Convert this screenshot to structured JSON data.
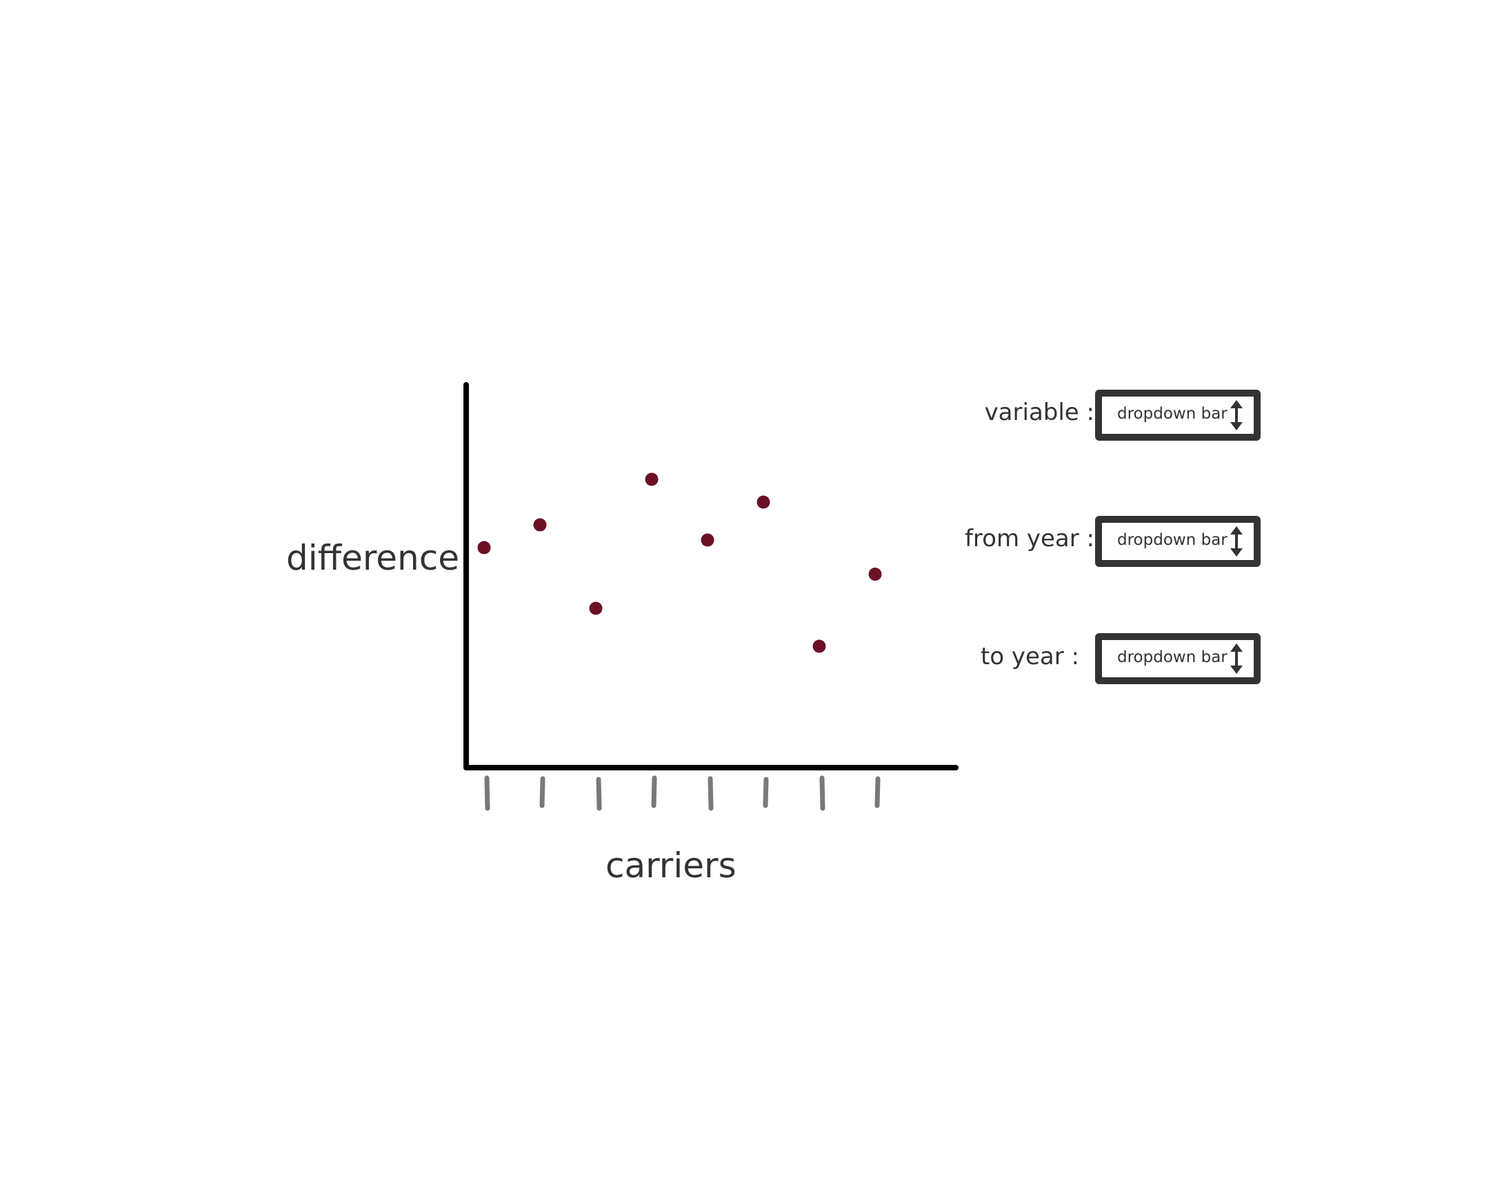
{
  "chart_data": {
    "type": "scatter",
    "xlabel": "carriers",
    "ylabel": "difference",
    "x": [
      1,
      2,
      3,
      4,
      5,
      6,
      7,
      8
    ],
    "values": [
      5.8,
      6.4,
      4.2,
      7.6,
      6.0,
      7.0,
      3.2,
      5.1
    ],
    "ylim": [
      0,
      10
    ],
    "grid": false,
    "point_color": "#6b1024",
    "axis_color": "#000000",
    "tick_color": "#767a7c"
  },
  "controls": [
    {
      "label": "variable :",
      "value": "dropdown bar",
      "icon": "up-down-arrow-icon"
    },
    {
      "label": "from year :",
      "value": "dropdown bar",
      "icon": "up-down-arrow-icon"
    },
    {
      "label": "to year :",
      "value": "dropdown bar",
      "icon": "up-down-arrow-icon"
    }
  ]
}
